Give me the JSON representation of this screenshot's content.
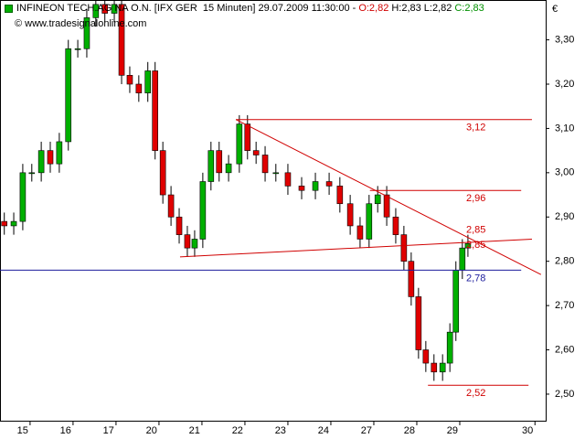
{
  "chart_data": {
    "type": "candlestick",
    "title": "INFINEON TECH.AG NA O.N. [IFX GER  15 Minuten] 29.07.2009 11:30:00 -",
    "quote": [
      {
        "label": "O:2,82",
        "color": "#d00000"
      },
      {
        "label": "H:2,83",
        "color": "#000000"
      },
      {
        "label": "L:2,82",
        "color": "#000000"
      },
      {
        "label": "C:2,83",
        "color": "#009000"
      }
    ],
    "watermark": "© www.tradesignalonline.com",
    "currency": "€",
    "up_color": "#00b000",
    "down_color": "#e00000",
    "x": [
      -0.6,
      -0.38,
      -0.17,
      0.04,
      0.26,
      0.47,
      0.68,
      0.89,
      1.11,
      1.32,
      1.53,
      1.74,
      1.96,
      2.13,
      2.32,
      2.53,
      2.74,
      2.91,
      3.09,
      3.28,
      3.47,
      3.66,
      3.83,
      4.02,
      4.21,
      4.4,
      4.62,
      4.87,
      5.06,
      5.26,
      5.47,
      5.72,
      6.0,
      6.32,
      6.64,
      6.96,
      7.21,
      7.45,
      7.68,
      7.89,
      8.09,
      8.3,
      8.51,
      8.7,
      8.87,
      9.04,
      9.21,
      9.4,
      9.6,
      9.77,
      9.91,
      10.06,
      10.19
    ],
    "open": [
      2.89,
      2.88,
      2.89,
      3.0,
      3.0,
      3.05,
      3.02,
      3.07,
      3.28,
      3.28,
      3.35,
      3.38,
      3.36,
      3.38,
      3.22,
      3.2,
      3.18,
      3.23,
      3.05,
      2.95,
      2.9,
      2.86,
      2.83,
      2.85,
      2.98,
      3.05,
      3.0,
      3.02,
      3.11,
      3.05,
      3.04,
      3.0,
      3.0,
      2.97,
      2.96,
      2.98,
      2.97,
      2.93,
      2.88,
      2.85,
      2.93,
      2.95,
      2.9,
      2.86,
      2.8,
      2.72,
      2.6,
      2.57,
      2.55,
      2.57,
      2.64,
      2.78,
      2.83
    ],
    "high": [
      2.91,
      2.91,
      3.02,
      3.02,
      3.07,
      3.07,
      3.09,
      3.3,
      3.3,
      3.37,
      3.4,
      3.4,
      3.4,
      3.4,
      3.24,
      3.22,
      3.25,
      3.25,
      3.07,
      2.97,
      2.92,
      2.88,
      2.87,
      3.0,
      3.07,
      3.07,
      3.04,
      3.13,
      3.13,
      3.07,
      3.06,
      3.02,
      3.02,
      2.99,
      3.0,
      3.0,
      2.99,
      2.95,
      2.9,
      2.95,
      2.97,
      2.97,
      2.92,
      2.88,
      2.82,
      2.74,
      2.62,
      2.59,
      2.59,
      2.66,
      2.8,
      2.85,
      2.86
    ],
    "low": [
      2.86,
      2.86,
      2.87,
      2.98,
      2.98,
      3.0,
      3.0,
      3.05,
      3.26,
      3.26,
      3.33,
      3.34,
      3.34,
      3.2,
      3.18,
      3.16,
      3.16,
      3.03,
      2.93,
      2.88,
      2.84,
      2.81,
      2.81,
      2.83,
      2.96,
      2.98,
      2.98,
      3.0,
      3.03,
      3.02,
      2.98,
      2.98,
      2.95,
      2.94,
      2.94,
      2.95,
      2.91,
      2.86,
      2.83,
      2.83,
      2.91,
      2.88,
      2.84,
      2.78,
      2.7,
      2.58,
      2.55,
      2.53,
      2.53,
      2.55,
      2.62,
      2.76,
      2.81
    ],
    "close": [
      2.88,
      2.89,
      3.0,
      3.0,
      3.05,
      3.02,
      3.07,
      3.28,
      3.28,
      3.35,
      3.38,
      3.36,
      3.38,
      3.22,
      3.2,
      3.18,
      3.23,
      3.05,
      2.95,
      2.9,
      2.86,
      2.83,
      2.85,
      2.98,
      3.05,
      3.0,
      3.02,
      3.11,
      3.05,
      3.04,
      3.0,
      3.0,
      2.97,
      2.96,
      2.98,
      2.97,
      2.93,
      2.88,
      2.85,
      2.93,
      2.95,
      2.9,
      2.86,
      2.8,
      2.72,
      2.6,
      2.57,
      2.55,
      2.57,
      2.64,
      2.78,
      2.83,
      2.84
    ],
    "xlim": [
      -0.7,
      12.0
    ],
    "xticks": [
      {
        "value": 0,
        "label": "15"
      },
      {
        "value": 1,
        "label": "16"
      },
      {
        "value": 2,
        "label": "17"
      },
      {
        "value": 3,
        "label": "20"
      },
      {
        "value": 4,
        "label": "21"
      },
      {
        "value": 5,
        "label": "22"
      },
      {
        "value": 6,
        "label": "23"
      },
      {
        "value": 7,
        "label": "24"
      },
      {
        "value": 8,
        "label": "27"
      },
      {
        "value": 9,
        "label": "28"
      },
      {
        "value": 10,
        "label": "29"
      },
      {
        "value": 11.75,
        "label": "30"
      }
    ],
    "ylim": [
      2.44,
      3.39
    ],
    "yticks": [
      {
        "value": 3.3,
        "label": "3,30"
      },
      {
        "value": 3.2,
        "label": "3,20"
      },
      {
        "value": 3.1,
        "label": "3,10"
      },
      {
        "value": 3.0,
        "label": "3,00"
      },
      {
        "value": 2.9,
        "label": "2,90"
      },
      {
        "value": 2.8,
        "label": "2,80"
      },
      {
        "value": 2.7,
        "label": "2,70"
      },
      {
        "value": 2.6,
        "label": "2,60"
      },
      {
        "value": 2.5,
        "label": "2,50"
      }
    ],
    "levels": [
      {
        "value": 3.12,
        "label": "3,12",
        "color": "#d00000",
        "x": [
          4.79,
          11.68
        ]
      },
      {
        "value": 2.96,
        "label": "2,96",
        "color": "#d00000",
        "x": [
          7.91,
          11.43
        ]
      },
      {
        "value": 2.78,
        "label": "2,78",
        "color": "#1c1c9c",
        "x": [
          -0.7,
          11.43
        ]
      },
      {
        "value": 2.52,
        "label": "2,52",
        "color": "#d00000",
        "x": [
          9.26,
          11.6
        ]
      }
    ],
    "trendlines": [
      {
        "x": [
          4.79,
          11.89
        ],
        "y": [
          3.12,
          2.77
        ],
        "label": "2,85",
        "label_value": 2.85,
        "color": "#d00000"
      },
      {
        "x": [
          3.49,
          11.68
        ],
        "y": [
          2.81,
          2.85
        ],
        "label": "2,85",
        "label_value": 2.845,
        "color": "#d00000"
      }
    ]
  }
}
